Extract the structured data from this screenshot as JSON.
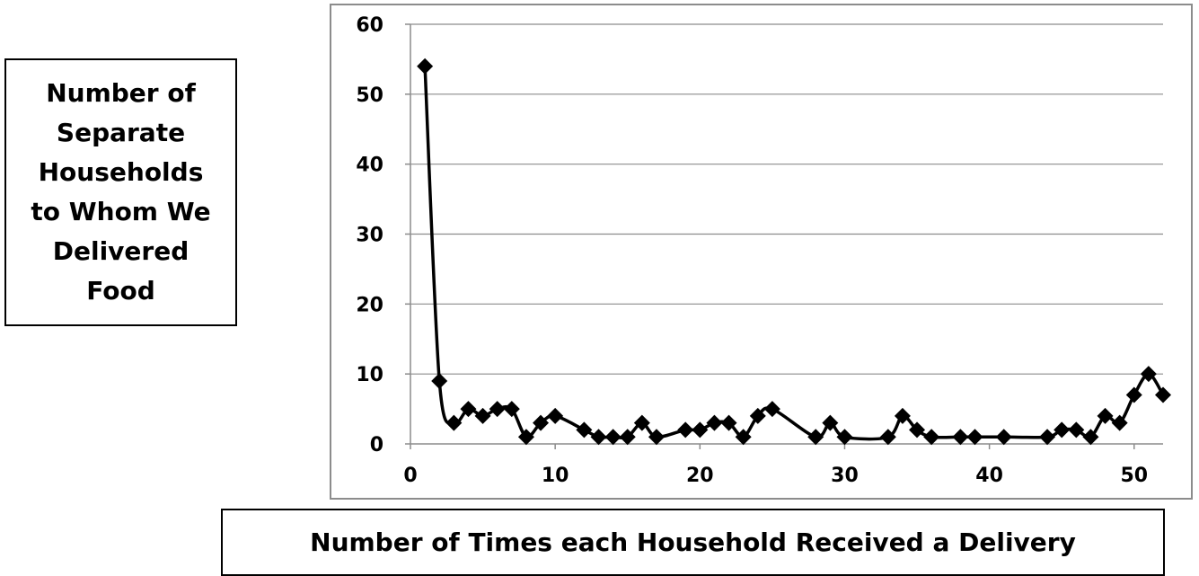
{
  "chart_data": {
    "type": "line",
    "title": "",
    "ylabel": "Number of Separate Households to Whom We Delivered Food",
    "ylabel_lines": [
      "Number of",
      "Separate",
      "Households",
      "to Whom We",
      "Delivered",
      "Food"
    ],
    "xlabel": "Number of Times each Household Received a Delivery",
    "xlim": [
      0,
      52
    ],
    "ylim": [
      0,
      60
    ],
    "x_ticks": [
      0,
      10,
      20,
      30,
      40,
      50
    ],
    "y_ticks": [
      0,
      10,
      20,
      30,
      40,
      50,
      60
    ],
    "grid": "horizontal",
    "legend": "none",
    "line_color": "#000000",
    "marker": "diamond",
    "series": [
      {
        "x": [
          1,
          2,
          3,
          4,
          5,
          6,
          7,
          8,
          9,
          10,
          12,
          13,
          14,
          15,
          16,
          17,
          19,
          20,
          21,
          22,
          23,
          24,
          25,
          28,
          29,
          30,
          33,
          34,
          35,
          36,
          38,
          39,
          41,
          44,
          45,
          46,
          47,
          48,
          49,
          50,
          51,
          52
        ],
        "values": [
          54,
          9,
          3,
          5,
          4,
          5,
          5,
          1,
          3,
          4,
          2,
          1,
          1,
          1,
          3,
          1,
          2,
          2,
          3,
          3,
          1,
          4,
          5,
          1,
          3,
          1,
          1,
          4,
          2,
          1,
          1,
          1,
          1,
          1,
          2,
          2,
          1,
          4,
          3,
          7,
          10,
          7
        ]
      }
    ]
  }
}
